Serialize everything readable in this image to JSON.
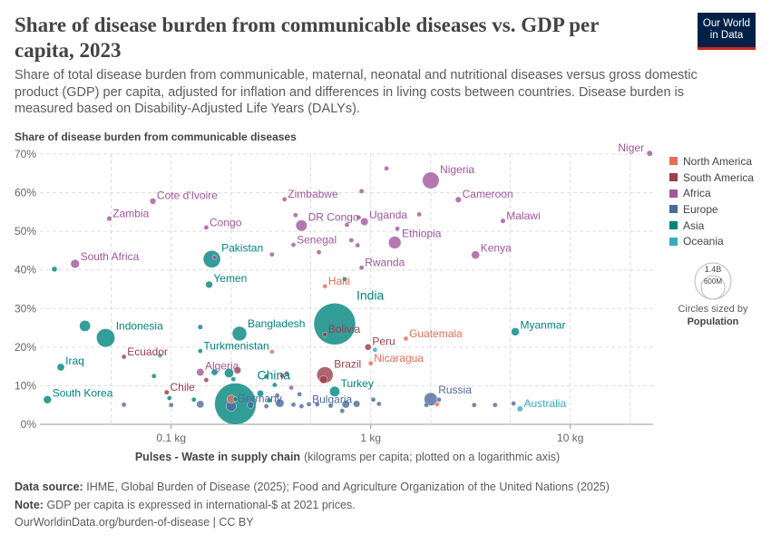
{
  "header": {
    "title": "Share of disease burden from communicable diseases vs. GDP per capita, 2023",
    "subtitle": "Share of total disease burden from communicable, maternal, neonatal and nutritional diseases versus gross domestic product (GDP) per capita, adjusted for inflation and differences in living costs between countries. Disease burden is measured based on Disability-Adjusted Life Years (DALYs).",
    "logo_line1": "Our World",
    "logo_line2": "in Data"
  },
  "footer": {
    "source_label": "Data source:",
    "source_text": "IHME, Global Burden of Disease (2025); Food and Agriculture Organization of the United Nations (2025)",
    "note_label": "Note:",
    "note_text": "GDP per capita is expressed in international-$ at 2021 prices.",
    "url": "OurWorldinData.org/burden-of-disease",
    "license": "CC BY"
  },
  "size_legend": {
    "big_label": "1.4B",
    "small_label": "600M",
    "caption": "Circles sized by",
    "caption_bold": "Population"
  },
  "chart_data": {
    "type": "scatter",
    "ylabel": "Share of disease burden from communicable diseases",
    "xlabel_bold": "Pulses - Waste in supply chain",
    "xlabel_rest": "(kilograms per capita; plotted on a logarithmic axis)",
    "x_scale": "log",
    "xlim": [
      0.022,
      26
    ],
    "ylim": [
      0,
      70
    ],
    "y_ticks": [
      0,
      10,
      20,
      30,
      40,
      50,
      60,
      70
    ],
    "y_tick_labels": [
      "0%",
      "10%",
      "20%",
      "30%",
      "40%",
      "50%",
      "60%",
      "70%"
    ],
    "x_ticks": [
      0.1,
      1,
      10
    ],
    "x_tick_labels": [
      "0.1 kg",
      "1 kg",
      "10 kg"
    ],
    "grid": true,
    "legend_position": "right",
    "regions": [
      {
        "name": "North America",
        "color": "#e56e5a"
      },
      {
        "name": "South America",
        "color": "#9a3f4b"
      },
      {
        "name": "Africa",
        "color": "#a2559c"
      },
      {
        "name": "Europe",
        "color": "#4c6a9c"
      },
      {
        "name": "Asia",
        "color": "#00847e"
      },
      {
        "name": "Oceania",
        "color": "#38aaba"
      }
    ],
    "points": [
      {
        "label": "Niger",
        "region": "Africa",
        "x": 25,
        "y": 70.2,
        "pop": 27,
        "label_side": "left"
      },
      {
        "label": "Nigeria",
        "region": "Africa",
        "x": 2.0,
        "y": 63.2,
        "pop": 228,
        "label_side": "right"
      },
      {
        "label": "Cameroon",
        "region": "Africa",
        "x": 2.75,
        "y": 58.2,
        "pop": 29,
        "label_side": "right"
      },
      {
        "label": "Cote d'Ivoire",
        "region": "Africa",
        "x": 0.081,
        "y": 57.8,
        "pop": 31,
        "label_side": "right"
      },
      {
        "label": "Zimbabwe",
        "region": "Africa",
        "x": 0.37,
        "y": 58.3,
        "pop": 16,
        "label_side": "right"
      },
      {
        "label": "Zambia",
        "region": "Africa",
        "x": 0.049,
        "y": 53.3,
        "pop": 21,
        "label_side": "right"
      },
      {
        "label": "Malawi",
        "region": "Africa",
        "x": 4.6,
        "y": 52.7,
        "pop": 21,
        "label_side": "right"
      },
      {
        "label": "DR Congo",
        "region": "Africa",
        "x": 0.45,
        "y": 51.5,
        "pop": 105,
        "label_side": "right"
      },
      {
        "label": "Uganda",
        "region": "Africa",
        "x": 0.93,
        "y": 52.5,
        "pop": 49,
        "label_side": "right"
      },
      {
        "label": "Congo",
        "region": "Africa",
        "x": 0.15,
        "y": 51.0,
        "pop": 6,
        "label_side": "right"
      },
      {
        "label": "Ethiopia",
        "region": "Africa",
        "x": 1.32,
        "y": 47.1,
        "pop": 128,
        "label_side": "right"
      },
      {
        "label": "Senegal",
        "region": "Africa",
        "x": 0.41,
        "y": 46.5,
        "pop": 18,
        "label_side": "right"
      },
      {
        "label": "Kenya",
        "region": "Africa",
        "x": 3.35,
        "y": 43.9,
        "pop": 55,
        "label_side": "right"
      },
      {
        "label": "South Africa",
        "region": "Africa",
        "x": 0.033,
        "y": 41.6,
        "pop": 63,
        "label_side": "right"
      },
      {
        "label": "Rwanda",
        "region": "Africa",
        "x": 0.9,
        "y": 40.6,
        "pop": 14,
        "label_side": "right"
      },
      {
        "label": "Algeria",
        "region": "Africa",
        "x": 0.14,
        "y": 13.5,
        "pop": 46,
        "label_side": "right"
      },
      {
        "label": "",
        "region": "Africa",
        "x": 1.2,
        "y": 66.3,
        "pop": 14
      },
      {
        "label": "",
        "region": "Africa",
        "x": 0.9,
        "y": 60.4,
        "pop": 12
      },
      {
        "label": "",
        "region": "Africa",
        "x": 1.75,
        "y": 54.4,
        "pop": 9
      },
      {
        "label": "",
        "region": "Africa",
        "x": 0.42,
        "y": 54.2,
        "pop": 9
      },
      {
        "label": "",
        "region": "Africa",
        "x": 0.76,
        "y": 51.7,
        "pop": 9
      },
      {
        "label": "",
        "region": "Africa",
        "x": 0.87,
        "y": 53.6,
        "pop": 7
      },
      {
        "label": "",
        "region": "Africa",
        "x": 1.36,
        "y": 50.7,
        "pop": 9
      },
      {
        "label": "",
        "region": "Africa",
        "x": 0.8,
        "y": 47.7,
        "pop": 6
      },
      {
        "label": "",
        "region": "Africa",
        "x": 0.86,
        "y": 46.4,
        "pop": 8
      },
      {
        "label": "",
        "region": "Africa",
        "x": 0.55,
        "y": 44.6,
        "pop": 6
      },
      {
        "label": "",
        "region": "Africa",
        "x": 0.32,
        "y": 44.0,
        "pop": 6
      },
      {
        "label": "",
        "region": "Africa",
        "x": 0.165,
        "y": 43.3,
        "pop": 9
      },
      {
        "label": "",
        "region": "Africa",
        "x": 0.38,
        "y": 13.2,
        "pop": 6
      },
      {
        "label": "",
        "region": "Africa",
        "x": 0.4,
        "y": 9.5,
        "pop": 8
      },
      {
        "label": "Pakistan",
        "region": "Asia",
        "x": 0.16,
        "y": 42.8,
        "pop": 245,
        "label_side": "right"
      },
      {
        "label": "Yemen",
        "region": "Asia",
        "x": 0.155,
        "y": 36.2,
        "pop": 40,
        "label_side": "right"
      },
      {
        "label": "India",
        "region": "Asia",
        "x": 0.66,
        "y": 26.0,
        "pop": 1430,
        "label_side": "right"
      },
      {
        "label": "Indonesia",
        "region": "Asia",
        "x": 0.047,
        "y": 22.4,
        "pop": 280,
        "label_side": "right"
      },
      {
        "label": "Bangladesh",
        "region": "Asia",
        "x": 0.22,
        "y": 23.5,
        "pop": 172,
        "label_side": "right"
      },
      {
        "label": "Myanmar",
        "region": "Asia",
        "x": 5.3,
        "y": 24.0,
        "pop": 54,
        "label_side": "right"
      },
      {
        "label": "Turkmenistan",
        "region": "Asia",
        "x": 0.14,
        "y": 19.0,
        "pop": 7,
        "label_side": "right"
      },
      {
        "label": "Iraq",
        "region": "Asia",
        "x": 0.028,
        "y": 14.8,
        "pop": 45,
        "label_side": "right"
      },
      {
        "label": "Turkey",
        "region": "Asia",
        "x": 0.66,
        "y": 8.5,
        "pop": 86,
        "label_side": "right"
      },
      {
        "label": "China",
        "region": "Asia",
        "x": 0.21,
        "y": 5.3,
        "pop": 1420,
        "label_side": "right"
      },
      {
        "label": "South Korea",
        "region": "Asia",
        "x": 0.024,
        "y": 6.4,
        "pop": 52,
        "label_side": "right"
      },
      {
        "label": "",
        "region": "Asia",
        "x": 0.026,
        "y": 40.2,
        "pop": 24
      },
      {
        "label": "",
        "region": "Asia",
        "x": 0.037,
        "y": 25.5,
        "pop": 100
      },
      {
        "label": "",
        "region": "Asia",
        "x": 0.14,
        "y": 25.2,
        "pop": 20
      },
      {
        "label": "",
        "region": "Asia",
        "x": 0.74,
        "y": 37.6,
        "pop": 7
      },
      {
        "label": "",
        "region": "Asia",
        "x": 0.195,
        "y": 13.3,
        "pop": 70
      },
      {
        "label": "",
        "region": "Asia",
        "x": 0.165,
        "y": 13.5,
        "pop": 35
      },
      {
        "label": "",
        "region": "Asia",
        "x": 0.082,
        "y": 12.5,
        "pop": 7
      },
      {
        "label": "",
        "region": "Asia",
        "x": 0.3,
        "y": 12.4,
        "pop": 18
      },
      {
        "label": "",
        "region": "Asia",
        "x": 0.205,
        "y": 11.7,
        "pop": 10
      },
      {
        "label": "",
        "region": "Asia",
        "x": 0.33,
        "y": 10.2,
        "pop": 8
      },
      {
        "label": "",
        "region": "Asia",
        "x": 0.28,
        "y": 8.0,
        "pop": 35
      },
      {
        "label": "",
        "region": "Asia",
        "x": 0.21,
        "y": 6.5,
        "pop": 10
      },
      {
        "label": "",
        "region": "Asia",
        "x": 0.13,
        "y": 6.4,
        "pop": 7
      },
      {
        "label": "",
        "region": "Asia",
        "x": 0.098,
        "y": 6.8,
        "pop": 6
      },
      {
        "label": "",
        "region": "Asia",
        "x": 0.31,
        "y": 6.2,
        "pop": 6
      },
      {
        "label": "Haiti",
        "region": "North America",
        "x": 0.59,
        "y": 35.8,
        "pop": 12,
        "label_side": "right"
      },
      {
        "label": "Guatemala",
        "region": "North America",
        "x": 1.5,
        "y": 22.2,
        "pop": 18,
        "label_side": "right"
      },
      {
        "label": "Nicaragua",
        "region": "North America",
        "x": 1.0,
        "y": 15.8,
        "pop": 7,
        "label_side": "right"
      },
      {
        "label": "",
        "region": "North America",
        "x": 0.32,
        "y": 18.8,
        "pop": 6
      },
      {
        "label": "",
        "region": "North America",
        "x": 0.2,
        "y": 6.5,
        "pop": 60
      },
      {
        "label": "",
        "region": "North America",
        "x": 2.15,
        "y": 5.2,
        "pop": 15
      },
      {
        "label": "Bolivia",
        "region": "South America",
        "x": 0.59,
        "y": 23.3,
        "pop": 12,
        "label_side": "right"
      },
      {
        "label": "Peru",
        "region": "South America",
        "x": 0.97,
        "y": 20.0,
        "pop": 34,
        "label_side": "right"
      },
      {
        "label": "Ecuador",
        "region": "South America",
        "x": 0.058,
        "y": 17.5,
        "pop": 18,
        "label_side": "right"
      },
      {
        "label": "Brazil",
        "region": "South America",
        "x": 0.59,
        "y": 12.8,
        "pop": 216,
        "label_side": "right"
      },
      {
        "label": "Chile",
        "region": "South America",
        "x": 0.095,
        "y": 8.3,
        "pop": 20,
        "label_side": "right"
      },
      {
        "label": "",
        "region": "South America",
        "x": 0.15,
        "y": 11.5,
        "pop": 8
      },
      {
        "label": "",
        "region": "South America",
        "x": 0.36,
        "y": 12.6,
        "pop": 7
      },
      {
        "label": "",
        "region": "South America",
        "x": 0.215,
        "y": 14.0,
        "pop": 40
      },
      {
        "label": "",
        "region": "South America",
        "x": 0.58,
        "y": 11.6,
        "pop": 52
      },
      {
        "label": "Germany",
        "region": "Europe",
        "x": 0.2,
        "y": 4.7,
        "pop": 84,
        "label_side": "right"
      },
      {
        "label": "Bulgaria",
        "region": "Europe",
        "x": 0.49,
        "y": 5.2,
        "pop": 6,
        "label_side": "right"
      },
      {
        "label": "Russia",
        "region": "Europe",
        "x": 2.0,
        "y": 6.5,
        "pop": 144,
        "label_side": "right"
      },
      {
        "label": "",
        "region": "Europe",
        "x": 0.058,
        "y": 5.1,
        "pop": 6
      },
      {
        "label": "",
        "region": "Europe",
        "x": 0.1,
        "y": 5.0,
        "pop": 10
      },
      {
        "label": "",
        "region": "Europe",
        "x": 0.14,
        "y": 5.2,
        "pop": 45
      },
      {
        "label": "",
        "region": "Europe",
        "x": 0.25,
        "y": 5.0,
        "pop": 38
      },
      {
        "label": "",
        "region": "Europe",
        "x": 0.3,
        "y": 4.7,
        "pop": 10
      },
      {
        "label": "",
        "region": "Europe",
        "x": 0.35,
        "y": 5.5,
        "pop": 59
      },
      {
        "label": "",
        "region": "Europe",
        "x": 0.41,
        "y": 5.1,
        "pop": 10
      },
      {
        "label": "",
        "region": "Europe",
        "x": 0.45,
        "y": 4.7,
        "pop": 9
      },
      {
        "label": "",
        "region": "Europe",
        "x": 0.54,
        "y": 5.2,
        "pop": 8
      },
      {
        "label": "",
        "region": "Europe",
        "x": 0.63,
        "y": 4.8,
        "pop": 6
      },
      {
        "label": "",
        "region": "Europe",
        "x": 0.72,
        "y": 3.5,
        "pop": 5
      },
      {
        "label": "",
        "region": "Europe",
        "x": 0.85,
        "y": 5.3,
        "pop": 38
      },
      {
        "label": "",
        "region": "Europe",
        "x": 0.75,
        "y": 5.2,
        "pop": 48
      },
      {
        "label": "",
        "region": "Europe",
        "x": 1.03,
        "y": 6.4,
        "pop": 6
      },
      {
        "label": "",
        "region": "Europe",
        "x": 1.1,
        "y": 5.3,
        "pop": 17
      },
      {
        "label": "",
        "region": "Europe",
        "x": 1.9,
        "y": 5.0,
        "pop": 10
      },
      {
        "label": "",
        "region": "Europe",
        "x": 2.2,
        "y": 6.4,
        "pop": 9
      },
      {
        "label": "",
        "region": "Europe",
        "x": 3.3,
        "y": 5.0,
        "pop": 10
      },
      {
        "label": "",
        "region": "Europe",
        "x": 4.2,
        "y": 5.0,
        "pop": 11
      },
      {
        "label": "",
        "region": "Europe",
        "x": 5.2,
        "y": 5.4,
        "pop": 5
      },
      {
        "label": "",
        "region": "Europe",
        "x": 0.34,
        "y": 7.5,
        "pop": 8
      },
      {
        "label": "",
        "region": "Europe",
        "x": 0.44,
        "y": 7.8,
        "pop": 6
      },
      {
        "label": "Australia",
        "region": "Oceania",
        "x": 5.6,
        "y": 4.0,
        "pop": 27,
        "label_side": "right"
      },
      {
        "label": "",
        "region": "Oceania",
        "x": 1.05,
        "y": 19.3,
        "pop": 5
      },
      {
        "label": "",
        "region": "Oceania",
        "x": 0.088,
        "y": 17.8,
        "pop": 5
      }
    ]
  }
}
